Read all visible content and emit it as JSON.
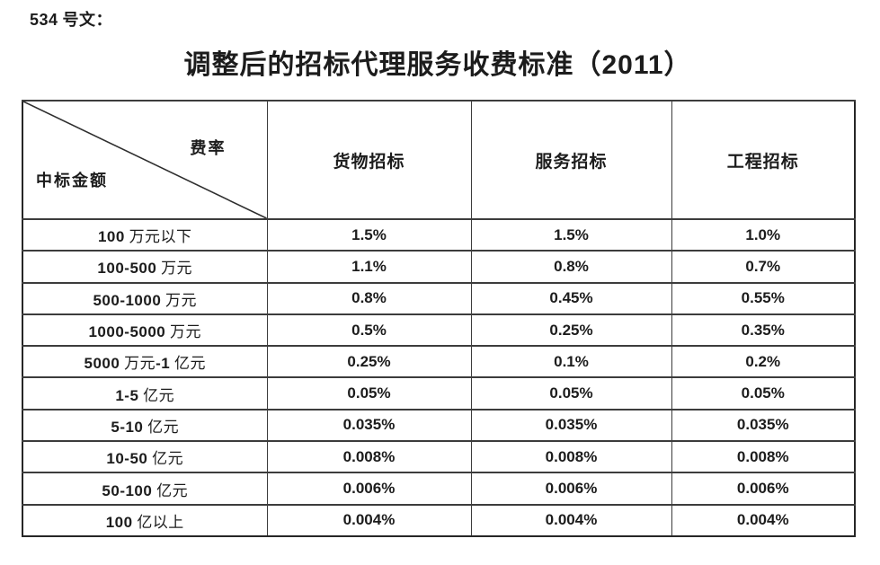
{
  "page": {
    "doc_label": "534 号文：",
    "title": "调整后的招标代理服务收费标准（2011）"
  },
  "table": {
    "corner": {
      "top_right": "费率",
      "bottom_left": "中标金额"
    },
    "columns": [
      "货物招标",
      "服务招标",
      "工程招标"
    ],
    "rows": [
      {
        "label": "100 万元以下",
        "values": [
          "1.5%",
          "1.5%",
          "1.0%"
        ]
      },
      {
        "label": "100-500 万元",
        "values": [
          "1.1%",
          "0.8%",
          "0.7%"
        ]
      },
      {
        "label": "500-1000 万元",
        "values": [
          "0.8%",
          "0.45%",
          "0.55%"
        ]
      },
      {
        "label": "1000-5000 万元",
        "values": [
          "0.5%",
          "0.25%",
          "0.35%"
        ]
      },
      {
        "label": "5000 万元-1 亿元",
        "values": [
          "0.25%",
          "0.1%",
          "0.2%"
        ]
      },
      {
        "label": "1-5 亿元",
        "values": [
          "0.05%",
          "0.05%",
          "0.05%"
        ]
      },
      {
        "label": "5-10 亿元",
        "values": [
          "0.035%",
          "0.035%",
          "0.035%"
        ]
      },
      {
        "label": "10-50 亿元",
        "values": [
          "0.008%",
          "0.008%",
          "0.008%"
        ]
      },
      {
        "label": "50-100 亿元",
        "values": [
          "0.006%",
          "0.006%",
          "0.006%"
        ]
      },
      {
        "label": "100 亿以上",
        "values": [
          "0.004%",
          "0.004%",
          "0.004%"
        ]
      }
    ]
  },
  "colors": {
    "text": "#1c1c1c",
    "border_inner": "#3c3c3c",
    "border_outer": "#262626",
    "background": "#ffffff"
  }
}
